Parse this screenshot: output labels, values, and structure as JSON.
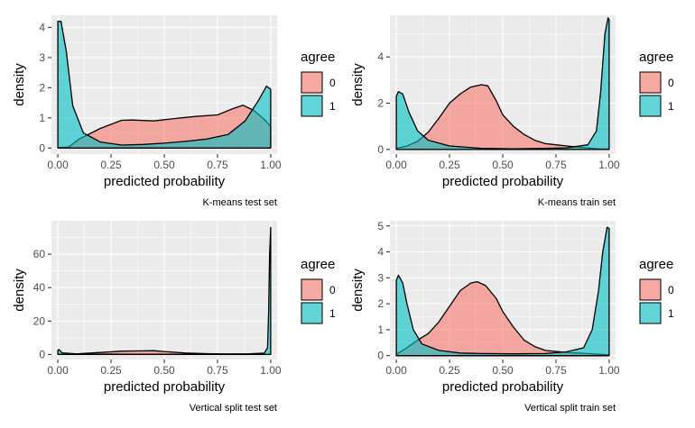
{
  "chart_data": [
    {
      "type": "area",
      "caption": "K-means test set",
      "xlabel": "predicted probability",
      "ylabel": "density",
      "xlim": [
        -0.03,
        1.03
      ],
      "ylim": [
        -0.2,
        4.4
      ],
      "xticks": [
        0,
        0.25,
        0.5,
        0.75,
        1
      ],
      "xtick_labels": [
        "0.00",
        "0.25",
        "0.50",
        "0.75",
        "1.00"
      ],
      "yticks": [
        0,
        1,
        2,
        3,
        4
      ],
      "ytick_labels": [
        "0",
        "1",
        "2",
        "3",
        "4"
      ],
      "grid": true,
      "legend": {
        "title": "agree",
        "position": "right",
        "entries": [
          "0",
          "1"
        ]
      },
      "series": [
        {
          "name": "0",
          "color": "#F8766D",
          "x": [
            0.0,
            0.05,
            0.1,
            0.2,
            0.3,
            0.35,
            0.45,
            0.55,
            0.65,
            0.75,
            0.82,
            0.87,
            0.92,
            0.97,
            1.0
          ],
          "y": [
            0.02,
            0.03,
            0.3,
            0.65,
            0.92,
            0.93,
            0.9,
            0.98,
            1.05,
            1.1,
            1.3,
            1.42,
            1.25,
            0.95,
            0.72
          ]
        },
        {
          "name": "1",
          "color": "#00BFC4",
          "x": [
            0.0,
            0.015,
            0.04,
            0.07,
            0.12,
            0.2,
            0.3,
            0.4,
            0.5,
            0.6,
            0.7,
            0.8,
            0.88,
            0.94,
            0.98,
            1.0
          ],
          "y": [
            4.2,
            4.2,
            3.2,
            1.4,
            0.5,
            0.2,
            0.1,
            0.12,
            0.16,
            0.22,
            0.3,
            0.45,
            0.9,
            1.55,
            2.05,
            1.95
          ]
        }
      ]
    },
    {
      "type": "area",
      "caption": "K-means train set",
      "xlabel": "predicted probability",
      "ylabel": "density",
      "xlim": [
        -0.03,
        1.03
      ],
      "ylim": [
        -0.2,
        5.8
      ],
      "xticks": [
        0,
        0.25,
        0.5,
        0.75,
        1
      ],
      "xtick_labels": [
        "0.00",
        "0.25",
        "0.50",
        "0.75",
        "1.00"
      ],
      "yticks": [
        0,
        2,
        4
      ],
      "ytick_labels": [
        "0",
        "2",
        "4"
      ],
      "grid": true,
      "legend": {
        "title": "agree",
        "position": "right",
        "entries": [
          "0",
          "1"
        ]
      },
      "series": [
        {
          "name": "0",
          "color": "#F8766D",
          "x": [
            0.0,
            0.05,
            0.1,
            0.15,
            0.2,
            0.25,
            0.3,
            0.35,
            0.4,
            0.43,
            0.47,
            0.5,
            0.55,
            0.6,
            0.65,
            0.7,
            0.75,
            0.8,
            0.9,
            0.95,
            1.0
          ],
          "y": [
            0.05,
            0.15,
            0.35,
            0.75,
            1.35,
            2.0,
            2.4,
            2.7,
            2.8,
            2.75,
            2.1,
            1.5,
            1.0,
            0.65,
            0.4,
            0.25,
            0.2,
            0.15,
            0.07,
            0.03,
            0.02
          ]
        },
        {
          "name": "1",
          "color": "#00BFC4",
          "x": [
            0.0,
            0.01,
            0.03,
            0.06,
            0.1,
            0.15,
            0.25,
            0.4,
            0.55,
            0.7,
            0.8,
            0.9,
            0.94,
            0.96,
            0.98,
            0.995,
            1.0
          ],
          "y": [
            2.3,
            2.5,
            2.4,
            1.6,
            0.8,
            0.4,
            0.15,
            0.05,
            0.03,
            0.05,
            0.07,
            0.2,
            0.8,
            2.5,
            5.0,
            5.7,
            5.6
          ]
        }
      ]
    },
    {
      "type": "area",
      "caption": "Vertical split test set",
      "xlabel": "predicted probability",
      "ylabel": "density",
      "xlim": [
        -0.03,
        1.03
      ],
      "ylim": [
        -3,
        80
      ],
      "xticks": [
        0,
        0.25,
        0.5,
        0.75,
        1
      ],
      "xtick_labels": [
        "0.00",
        "0.25",
        "0.50",
        "0.75",
        "1.00"
      ],
      "yticks": [
        0,
        20,
        40,
        60
      ],
      "ytick_labels": [
        "0",
        "20",
        "40",
        "60"
      ],
      "grid": true,
      "legend": {
        "title": "agree",
        "position": "right",
        "entries": [
          "0",
          "1"
        ]
      },
      "series": [
        {
          "name": "0",
          "color": "#F8766D",
          "x": [
            0.0,
            0.1,
            0.2,
            0.3,
            0.4,
            0.45,
            0.5,
            0.6,
            0.7,
            0.8,
            0.9,
            0.97,
            1.0
          ],
          "y": [
            0.1,
            0.5,
            1.2,
            2.0,
            2.2,
            2.3,
            1.8,
            0.9,
            0.5,
            0.3,
            0.2,
            0.1,
            0.1
          ]
        },
        {
          "name": "1",
          "color": "#00BFC4",
          "x": [
            0.0,
            0.005,
            0.02,
            0.1,
            0.3,
            0.5,
            0.7,
            0.9,
            0.97,
            0.985,
            0.99,
            0.995,
            1.0
          ],
          "y": [
            2.5,
            3.0,
            1.0,
            0.3,
            0.2,
            0.2,
            0.2,
            0.4,
            0.8,
            4,
            25,
            60,
            76
          ]
        }
      ]
    },
    {
      "type": "area",
      "caption": "Vertical split train set",
      "xlabel": "predicted probability",
      "ylabel": "density",
      "xlim": [
        -0.03,
        1.03
      ],
      "ylim": [
        -0.15,
        5.2
      ],
      "xticks": [
        0,
        0.25,
        0.5,
        0.75,
        1
      ],
      "xtick_labels": [
        "0.00",
        "0.25",
        "0.50",
        "0.75",
        "1.00"
      ],
      "yticks": [
        0,
        1,
        2,
        3,
        4,
        5
      ],
      "ytick_labels": [
        "0",
        "1",
        "2",
        "3",
        "4",
        "5"
      ],
      "grid": true,
      "legend": {
        "title": "agree",
        "position": "right",
        "entries": [
          "0",
          "1"
        ]
      },
      "series": [
        {
          "name": "0",
          "color": "#F8766D",
          "x": [
            0.0,
            0.05,
            0.1,
            0.15,
            0.2,
            0.25,
            0.3,
            0.35,
            0.38,
            0.42,
            0.47,
            0.5,
            0.55,
            0.6,
            0.65,
            0.7,
            0.8,
            0.9,
            0.95,
            1.0
          ],
          "y": [
            0.05,
            0.3,
            0.6,
            0.85,
            1.3,
            1.9,
            2.5,
            2.8,
            2.85,
            2.7,
            2.2,
            1.7,
            1.1,
            0.6,
            0.35,
            0.2,
            0.12,
            0.08,
            0.05,
            0.03
          ]
        },
        {
          "name": "1",
          "color": "#00BFC4",
          "x": [
            0.0,
            0.01,
            0.03,
            0.05,
            0.08,
            0.12,
            0.2,
            0.3,
            0.4,
            0.55,
            0.7,
            0.8,
            0.88,
            0.92,
            0.95,
            0.97,
            0.99,
            1.0
          ],
          "y": [
            2.9,
            3.1,
            2.8,
            2.0,
            1.0,
            0.45,
            0.2,
            0.1,
            0.08,
            0.07,
            0.08,
            0.15,
            0.3,
            1.0,
            2.5,
            4.0,
            4.95,
            4.9
          ]
        }
      ]
    }
  ]
}
